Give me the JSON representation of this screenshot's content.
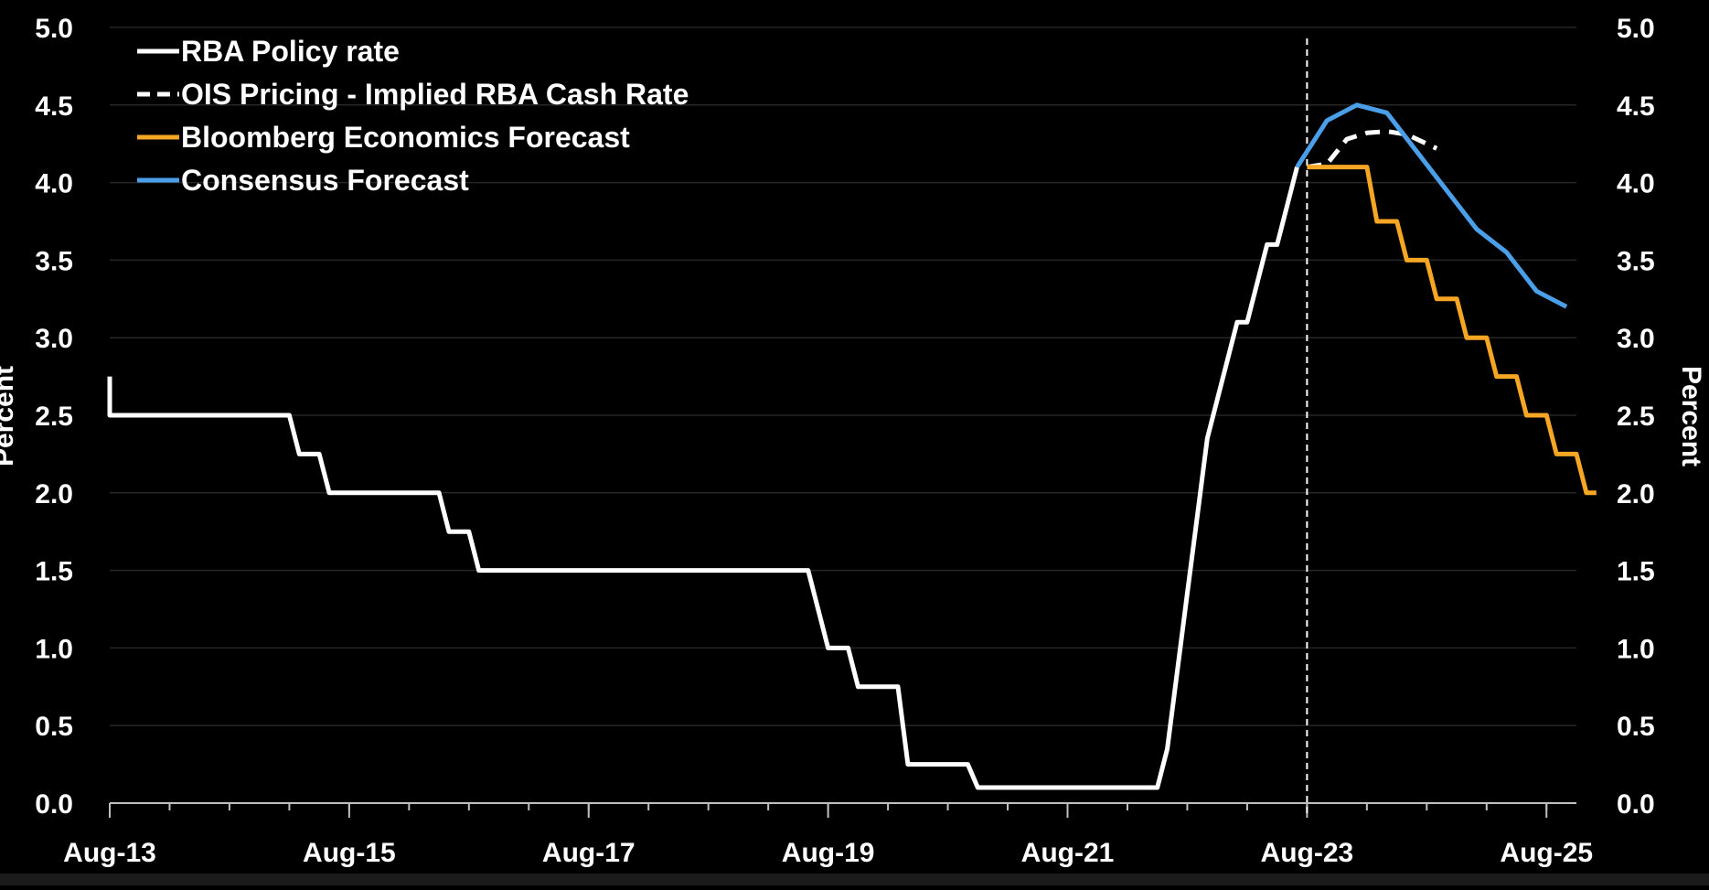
{
  "chart_data": {
    "type": "line",
    "ylabel_left": "Percent",
    "ylabel_right": "Percent",
    "ylim": [
      0,
      5
    ],
    "y_ticks": [
      0,
      0.5,
      1,
      1.5,
      2,
      2.5,
      3,
      3.5,
      4,
      4.5,
      5
    ],
    "y_tick_labels": [
      "0.0",
      "0.5",
      "1.0",
      "1.5",
      "2.0",
      "2.5",
      "3.0",
      "3.5",
      "4.0",
      "4.5",
      "5.0"
    ],
    "xlim": [
      "2013-08",
      "2025-11"
    ],
    "x_ticks": [
      "2013-08",
      "2015-08",
      "2017-08",
      "2019-08",
      "2021-08",
      "2023-08",
      "2025-08"
    ],
    "x_tick_labels": [
      "Aug-13",
      "Aug-15",
      "Aug-17",
      "Aug-19",
      "Aug-21",
      "Aug-23",
      "Aug-25"
    ],
    "grid": "horizontal",
    "legend_position": "top-left",
    "vertical_marker": {
      "x": "2023-08",
      "style": "dashed",
      "color": "#ffffff"
    },
    "series": [
      {
        "name": "RBA Policy rate",
        "color": "#ffffff",
        "style": "solid",
        "points": [
          [
            "2013-08",
            2.75
          ],
          [
            "2013-08",
            2.5
          ],
          [
            "2015-02",
            2.5
          ],
          [
            "2015-03",
            2.25
          ],
          [
            "2015-05",
            2.25
          ],
          [
            "2015-06",
            2.0
          ],
          [
            "2016-05",
            2.0
          ],
          [
            "2016-06",
            1.75
          ],
          [
            "2016-08",
            1.75
          ],
          [
            "2016-09",
            1.5
          ],
          [
            "2019-06",
            1.5
          ],
          [
            "2019-08",
            1.0
          ],
          [
            "2019-10",
            1.0
          ],
          [
            "2019-11",
            0.75
          ],
          [
            "2020-03",
            0.75
          ],
          [
            "2020-04",
            0.25
          ],
          [
            "2020-10",
            0.25
          ],
          [
            "2020-11",
            0.1
          ],
          [
            "2022-05",
            0.1
          ],
          [
            "2022-06",
            0.35
          ],
          [
            "2022-07",
            0.85
          ],
          [
            "2022-08",
            1.35
          ],
          [
            "2022-09",
            1.85
          ],
          [
            "2022-10",
            2.35
          ],
          [
            "2022-12",
            2.85
          ],
          [
            "2023-01",
            3.1
          ],
          [
            "2023-02",
            3.1
          ],
          [
            "2023-03",
            3.35
          ],
          [
            "2023-04",
            3.6
          ],
          [
            "2023-05",
            3.6
          ],
          [
            "2023-06",
            3.85
          ],
          [
            "2023-07",
            4.1
          ]
        ]
      },
      {
        "name": "OIS Pricing - Implied RBA Cash Rate",
        "color": "#ffffff",
        "style": "dashed",
        "points": [
          [
            "2023-08",
            4.1
          ],
          [
            "2023-10",
            4.12
          ],
          [
            "2023-12",
            4.28
          ],
          [
            "2024-02",
            4.32
          ],
          [
            "2024-04",
            4.33
          ],
          [
            "2024-06",
            4.31
          ],
          [
            "2024-09",
            4.22
          ]
        ]
      },
      {
        "name": "Bloomberg Economics Forecast",
        "color": "#f5a623",
        "style": "solid",
        "points": [
          [
            "2023-08",
            4.1
          ],
          [
            "2024-02",
            4.1
          ],
          [
            "2024-03",
            3.75
          ],
          [
            "2024-05",
            3.75
          ],
          [
            "2024-06",
            3.5
          ],
          [
            "2024-08",
            3.5
          ],
          [
            "2024-09",
            3.25
          ],
          [
            "2024-11",
            3.25
          ],
          [
            "2024-12",
            3.0
          ],
          [
            "2025-02",
            3.0
          ],
          [
            "2025-03",
            2.75
          ],
          [
            "2025-05",
            2.75
          ],
          [
            "2025-06",
            2.5
          ],
          [
            "2025-08",
            2.5
          ],
          [
            "2025-09",
            2.25
          ],
          [
            "2025-11",
            2.25
          ],
          [
            "2025-12",
            2.0
          ],
          [
            "2026-01",
            2.0
          ]
        ]
      },
      {
        "name": "Consensus Forecast",
        "color": "#4a9fe8",
        "style": "solid",
        "points": [
          [
            "2023-07",
            4.1
          ],
          [
            "2023-10",
            4.4
          ],
          [
            "2024-01",
            4.5
          ],
          [
            "2024-04",
            4.45
          ],
          [
            "2024-07",
            4.2
          ],
          [
            "2024-10",
            3.95
          ],
          [
            "2025-01",
            3.7
          ],
          [
            "2025-04",
            3.55
          ],
          [
            "2025-07",
            3.3
          ],
          [
            "2025-10",
            3.2
          ]
        ]
      }
    ]
  }
}
